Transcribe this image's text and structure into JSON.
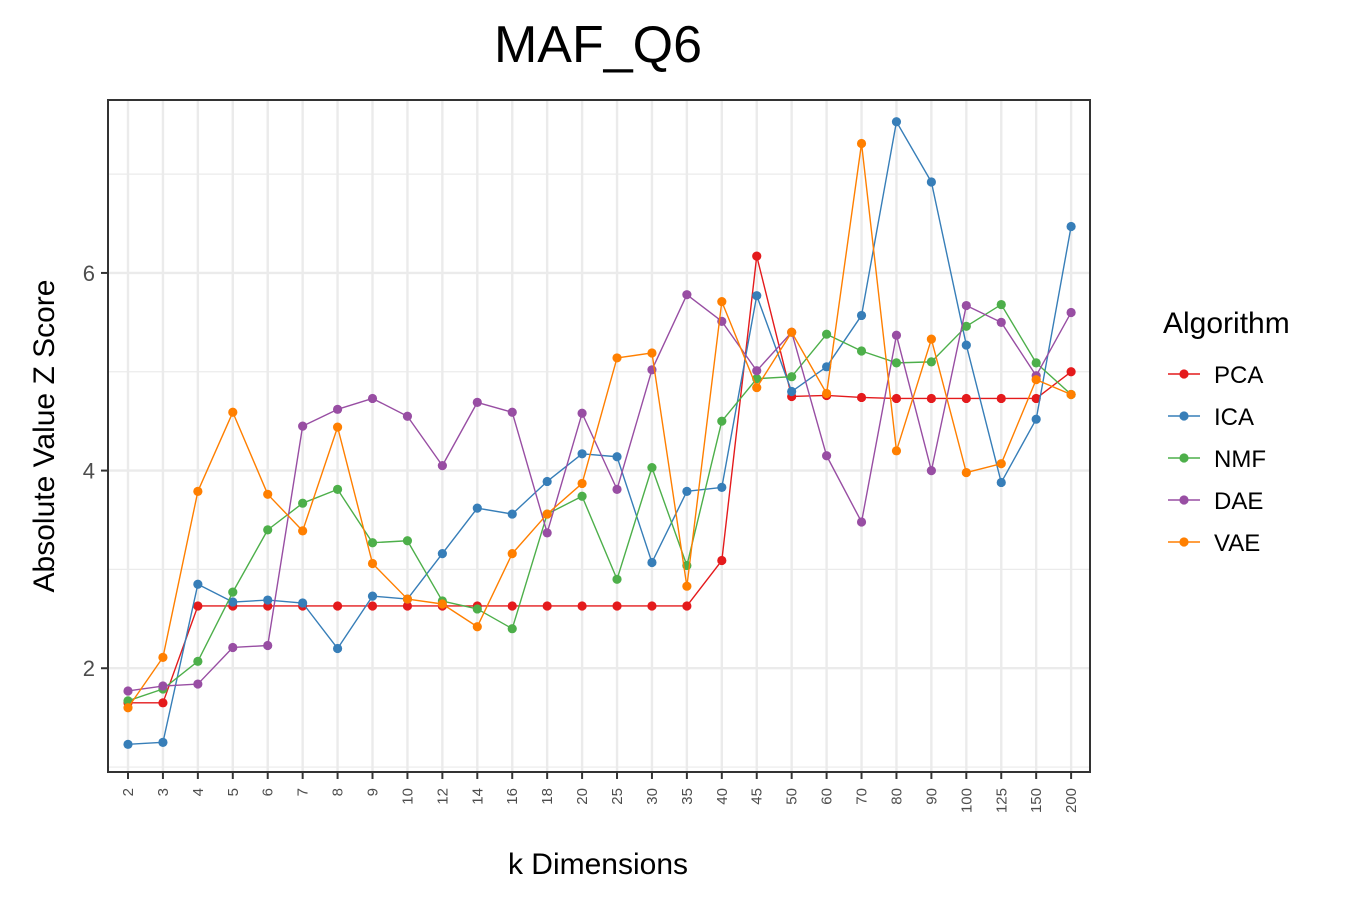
{
  "chart_data": {
    "type": "line",
    "title": "MAF_Q6",
    "xlabel": "k Dimensions",
    "ylabel": "Absolute Value Z Score",
    "categories": [
      "2",
      "3",
      "4",
      "5",
      "6",
      "7",
      "8",
      "9",
      "10",
      "12",
      "14",
      "16",
      "18",
      "20",
      "25",
      "30",
      "35",
      "40",
      "45",
      "50",
      "60",
      "70",
      "80",
      "90",
      "100",
      "125",
      "150",
      "200"
    ],
    "y_ticks": [
      2,
      4,
      6
    ],
    "ylim": [
      0.95,
      7.75
    ],
    "grid": true,
    "legend": {
      "title": "Algorithm",
      "position": "right"
    },
    "series": [
      {
        "name": "PCA",
        "color": "#e41a1c",
        "values": [
          1.65,
          1.65,
          2.63,
          2.63,
          2.63,
          2.63,
          2.63,
          2.63,
          2.63,
          2.63,
          2.63,
          2.63,
          2.63,
          2.63,
          2.63,
          2.63,
          2.63,
          3.09,
          6.17,
          4.75,
          4.76,
          4.74,
          4.73,
          4.73,
          4.73,
          4.73,
          4.73,
          5.0
        ]
      },
      {
        "name": "ICA",
        "color": "#377eb8",
        "values": [
          1.23,
          1.25,
          2.85,
          2.67,
          2.69,
          2.66,
          2.2,
          2.73,
          2.7,
          3.16,
          3.62,
          3.56,
          3.89,
          4.17,
          4.14,
          3.07,
          3.79,
          3.83,
          5.77,
          4.8,
          5.05,
          5.57,
          7.53,
          6.92,
          5.27,
          3.88,
          4.52,
          6.47
        ]
      },
      {
        "name": "NMF",
        "color": "#4daf4a",
        "values": [
          1.67,
          1.79,
          2.07,
          2.77,
          3.4,
          3.67,
          3.81,
          3.27,
          3.29,
          2.68,
          2.6,
          2.4,
          3.56,
          3.74,
          2.9,
          4.03,
          3.04,
          4.5,
          4.93,
          4.95,
          5.38,
          5.21,
          5.09,
          5.1,
          5.46,
          5.68,
          5.09,
          4.77
        ]
      },
      {
        "name": "DAE",
        "color": "#984ea3",
        "values": [
          1.77,
          1.82,
          1.84,
          2.21,
          2.23,
          4.45,
          4.62,
          4.73,
          4.55,
          4.05,
          4.69,
          4.59,
          3.37,
          4.58,
          3.81,
          5.02,
          5.78,
          5.51,
          5.01,
          5.4,
          4.15,
          3.48,
          5.37,
          4.0,
          5.67,
          5.5,
          4.96,
          5.6
        ]
      },
      {
        "name": "VAE",
        "color": "#ff7f00",
        "values": [
          1.6,
          2.11,
          3.79,
          4.59,
          3.76,
          3.39,
          4.44,
          3.06,
          2.7,
          2.65,
          2.42,
          3.16,
          3.56,
          3.87,
          5.14,
          5.19,
          2.83,
          5.71,
          4.84,
          5.4,
          4.78,
          7.31,
          4.2,
          5.33,
          3.98,
          4.07,
          4.92,
          4.77
        ]
      }
    ]
  }
}
